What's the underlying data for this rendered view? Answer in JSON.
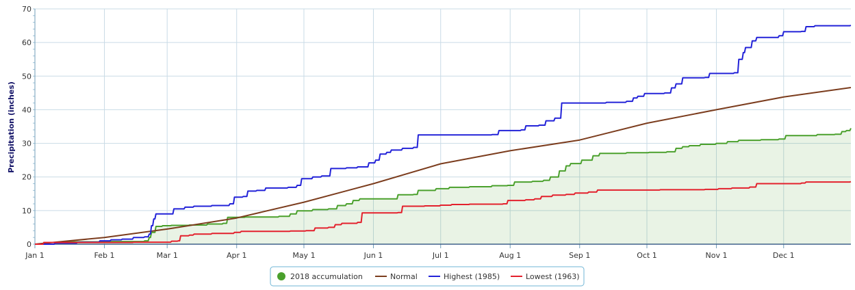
{
  "chart_data": {
    "type": "line",
    "title": "",
    "ylabel": "Precipitation (inches)",
    "xlabel": "",
    "x_domain": [
      1,
      365
    ],
    "ylim": [
      0,
      70
    ],
    "y_ticks": [
      0,
      10,
      20,
      30,
      40,
      50,
      60,
      70
    ],
    "month_ticks": [
      {
        "label": "Jan 1",
        "day": 1
      },
      {
        "label": "Feb 1",
        "day": 32
      },
      {
        "label": "Mar 1",
        "day": 60
      },
      {
        "label": "Apr 1",
        "day": 91
      },
      {
        "label": "May 1",
        "day": 121
      },
      {
        "label": "Jun 1",
        "day": 152
      },
      {
        "label": "Jul 1",
        "day": 182
      },
      {
        "label": "Aug 1",
        "day": 213
      },
      {
        "label": "Sep 1",
        "day": 244
      },
      {
        "label": "Oct 1",
        "day": 274
      },
      {
        "label": "Nov 1",
        "day": 305
      },
      {
        "label": "Dec 1",
        "day": 335
      }
    ],
    "grid": true,
    "legend_position": "bottom-center",
    "series": [
      {
        "name": "2018 accumulation",
        "color": "#4aa02c",
        "style": "step-area",
        "points": [
          [
            1,
            0
          ],
          [
            5,
            0.5
          ],
          [
            15,
            0.7
          ],
          [
            30,
            0.8
          ],
          [
            45,
            0.8
          ],
          [
            50,
            1.0
          ],
          [
            52,
            2.0
          ],
          [
            53,
            3.5
          ],
          [
            55,
            5.3
          ],
          [
            58,
            5.5
          ],
          [
            62,
            5.6
          ],
          [
            70,
            5.7
          ],
          [
            78,
            6.0
          ],
          [
            85,
            6.2
          ],
          [
            87,
            8.0
          ],
          [
            95,
            8.1
          ],
          [
            110,
            8.3
          ],
          [
            115,
            9.0
          ],
          [
            118,
            9.9
          ],
          [
            125,
            10.3
          ],
          [
            132,
            10.5
          ],
          [
            136,
            11.5
          ],
          [
            140,
            12.0
          ],
          [
            143,
            13.0
          ],
          [
            146,
            13.5
          ],
          [
            160,
            13.5
          ],
          [
            163,
            14.7
          ],
          [
            170,
            14.8
          ],
          [
            172,
            16.0
          ],
          [
            180,
            16.5
          ],
          [
            186,
            16.9
          ],
          [
            195,
            17.1
          ],
          [
            205,
            17.4
          ],
          [
            212,
            17.5
          ],
          [
            215,
            18.5
          ],
          [
            223,
            18.7
          ],
          [
            228,
            19.0
          ],
          [
            231,
            20.0
          ],
          [
            235,
            21.8
          ],
          [
            238,
            23.3
          ],
          [
            240,
            24.0
          ],
          [
            245,
            25.0
          ],
          [
            250,
            26.3
          ],
          [
            253,
            27.0
          ],
          [
            265,
            27.2
          ],
          [
            275,
            27.3
          ],
          [
            283,
            27.5
          ],
          [
            287,
            28.5
          ],
          [
            290,
            29.0
          ],
          [
            293,
            29.3
          ],
          [
            298,
            29.7
          ],
          [
            305,
            30.0
          ],
          [
            310,
            30.5
          ],
          [
            315,
            30.9
          ],
          [
            325,
            31.1
          ],
          [
            333,
            31.3
          ],
          [
            336,
            32.3
          ],
          [
            350,
            32.6
          ],
          [
            358,
            32.7
          ],
          [
            361,
            33.5
          ],
          [
            363,
            33.8
          ],
          [
            365,
            34.5
          ]
        ]
      },
      {
        "name": "Normal",
        "color": "#7b3c1d",
        "style": "line",
        "points": [
          [
            1,
            0
          ],
          [
            32,
            2.0
          ],
          [
            60,
            4.5
          ],
          [
            91,
            7.8
          ],
          [
            121,
            12.5
          ],
          [
            152,
            18.0
          ],
          [
            182,
            23.9
          ],
          [
            213,
            27.8
          ],
          [
            244,
            31.0
          ],
          [
            274,
            36.0
          ],
          [
            305,
            40.0
          ],
          [
            335,
            43.8
          ],
          [
            365,
            46.6
          ]
        ]
      },
      {
        "name": "Highest (1985)",
        "color": "#2222d8",
        "style": "step",
        "points": [
          [
            1,
            0
          ],
          [
            10,
            0.3
          ],
          [
            20,
            0.6
          ],
          [
            30,
            1.0
          ],
          [
            35,
            1.3
          ],
          [
            40,
            1.5
          ],
          [
            45,
            2.0
          ],
          [
            50,
            2.2
          ],
          [
            52,
            3.0
          ],
          [
            53,
            5.5
          ],
          [
            54,
            7.5
          ],
          [
            55,
            9.0
          ],
          [
            62,
            9.0
          ],
          [
            63,
            10.5
          ],
          [
            68,
            11.0
          ],
          [
            72,
            11.3
          ],
          [
            80,
            11.5
          ],
          [
            88,
            12.0
          ],
          [
            90,
            14.0
          ],
          [
            94,
            14.2
          ],
          [
            96,
            15.8
          ],
          [
            100,
            16.0
          ],
          [
            104,
            16.7
          ],
          [
            114,
            16.9
          ],
          [
            118,
            17.5
          ],
          [
            120,
            19.5
          ],
          [
            125,
            20.0
          ],
          [
            129,
            20.3
          ],
          [
            133,
            22.5
          ],
          [
            140,
            22.7
          ],
          [
            145,
            23.0
          ],
          [
            150,
            24.2
          ],
          [
            153,
            25.0
          ],
          [
            155,
            26.8
          ],
          [
            158,
            27.3
          ],
          [
            160,
            28.0
          ],
          [
            165,
            28.5
          ],
          [
            170,
            28.8
          ],
          [
            172,
            32.5
          ],
          [
            195,
            32.5
          ],
          [
            205,
            32.6
          ],
          [
            208,
            33.8
          ],
          [
            218,
            34.0
          ],
          [
            220,
            35.2
          ],
          [
            226,
            35.4
          ],
          [
            229,
            36.7
          ],
          [
            233,
            37.5
          ],
          [
            236,
            42.0
          ],
          [
            256,
            42.2
          ],
          [
            265,
            42.5
          ],
          [
            268,
            43.5
          ],
          [
            270,
            44.0
          ],
          [
            273,
            44.8
          ],
          [
            282,
            45.0
          ],
          [
            285,
            46.5
          ],
          [
            287,
            47.7
          ],
          [
            290,
            49.5
          ],
          [
            300,
            49.6
          ],
          [
            302,
            50.8
          ],
          [
            313,
            51.0
          ],
          [
            315,
            55.0
          ],
          [
            317,
            57.0
          ],
          [
            318,
            58.5
          ],
          [
            321,
            60.5
          ],
          [
            323,
            61.5
          ],
          [
            333,
            62.0
          ],
          [
            335,
            63.2
          ],
          [
            343,
            63.3
          ],
          [
            345,
            64.7
          ],
          [
            349,
            65.0
          ],
          [
            365,
            65.1
          ]
        ]
      },
      {
        "name": "Lowest (1963)",
        "color": "#e3202c",
        "style": "step",
        "points": [
          [
            1,
            0
          ],
          [
            5,
            0.5
          ],
          [
            25,
            0.5
          ],
          [
            45,
            0.6
          ],
          [
            62,
            0.9
          ],
          [
            65,
            1.0
          ],
          [
            66,
            2.5
          ],
          [
            70,
            2.7
          ],
          [
            72,
            3.0
          ],
          [
            80,
            3.2
          ],
          [
            90,
            3.5
          ],
          [
            93,
            3.8
          ],
          [
            105,
            3.8
          ],
          [
            115,
            3.9
          ],
          [
            122,
            4.0
          ],
          [
            126,
            4.8
          ],
          [
            132,
            5.0
          ],
          [
            135,
            5.8
          ],
          [
            138,
            6.2
          ],
          [
            145,
            6.5
          ],
          [
            147,
            9.3
          ],
          [
            157,
            9.3
          ],
          [
            163,
            9.4
          ],
          [
            165,
            11.3
          ],
          [
            175,
            11.4
          ],
          [
            182,
            11.6
          ],
          [
            187,
            11.8
          ],
          [
            195,
            11.9
          ],
          [
            210,
            12.0
          ],
          [
            212,
            13.0
          ],
          [
            220,
            13.2
          ],
          [
            224,
            13.5
          ],
          [
            227,
            14.2
          ],
          [
            232,
            14.6
          ],
          [
            238,
            14.8
          ],
          [
            242,
            15.2
          ],
          [
            248,
            15.5
          ],
          [
            252,
            16.1
          ],
          [
            262,
            16.1
          ],
          [
            280,
            16.2
          ],
          [
            300,
            16.3
          ],
          [
            306,
            16.5
          ],
          [
            312,
            16.7
          ],
          [
            320,
            17.0
          ],
          [
            323,
            18.0
          ],
          [
            343,
            18.2
          ],
          [
            345,
            18.5
          ],
          [
            365,
            18.6
          ]
        ]
      }
    ]
  }
}
